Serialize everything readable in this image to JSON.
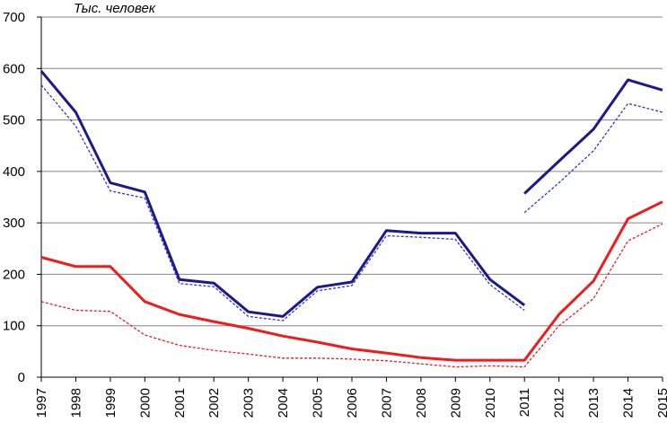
{
  "chart_data": {
    "type": "line",
    "title": "",
    "ylabel": "Тыс. человек",
    "xlabel": "",
    "ylim": [
      0,
      700
    ],
    "yticks": [
      0,
      100,
      200,
      300,
      400,
      500,
      600,
      700
    ],
    "ytick_labels": [
      "0",
      "100",
      "200",
      "300",
      "400",
      "500",
      "600",
      "700"
    ],
    "x": [
      "1997",
      "1998",
      "1999",
      "2000",
      "2001",
      "2002",
      "2003",
      "2004",
      "2005",
      "2006",
      "2007",
      "2008",
      "2009",
      "2010",
      "2011",
      "2012",
      "2013",
      "2014",
      "2015"
    ],
    "grid": true,
    "legend": "none",
    "series": [
      {
        "color": "#1a1a8c",
        "style": "solid",
        "values": [
          595,
          515,
          378,
          360,
          190,
          183,
          127,
          118,
          175,
          185,
          285,
          280,
          280,
          190,
          140,
          null,
          null,
          null,
          null
        ]
      },
      {
        "color": "#1a1a8c",
        "style": "solid",
        "values": [
          null,
          null,
          null,
          null,
          null,
          null,
          null,
          null,
          null,
          null,
          null,
          null,
          null,
          null,
          357,
          420,
          482,
          578,
          558
        ]
      },
      {
        "color": "#3333cc",
        "style": "dashed",
        "values": [
          568,
          488,
          362,
          348,
          182,
          176,
          118,
          110,
          168,
          178,
          275,
          272,
          268,
          180,
          130,
          null,
          null,
          null,
          null
        ]
      },
      {
        "color": "#3333cc",
        "style": "dashed",
        "values": [
          null,
          null,
          null,
          null,
          null,
          null,
          null,
          null,
          null,
          null,
          null,
          null,
          null,
          null,
          320,
          378,
          440,
          532,
          515
        ]
      },
      {
        "color": "#ee1c1c",
        "style": "solid",
        "values": [
          233,
          215,
          215,
          147,
          122,
          108,
          95,
          80,
          68,
          55,
          47,
          38,
          33,
          33,
          33,
          122,
          187,
          308,
          341
        ]
      },
      {
        "color": "#ee1c1c",
        "style": "dashed",
        "values": [
          147,
          130,
          128,
          82,
          62,
          52,
          45,
          37,
          37,
          35,
          32,
          26,
          20,
          22,
          20,
          100,
          153,
          265,
          298
        ]
      }
    ]
  }
}
